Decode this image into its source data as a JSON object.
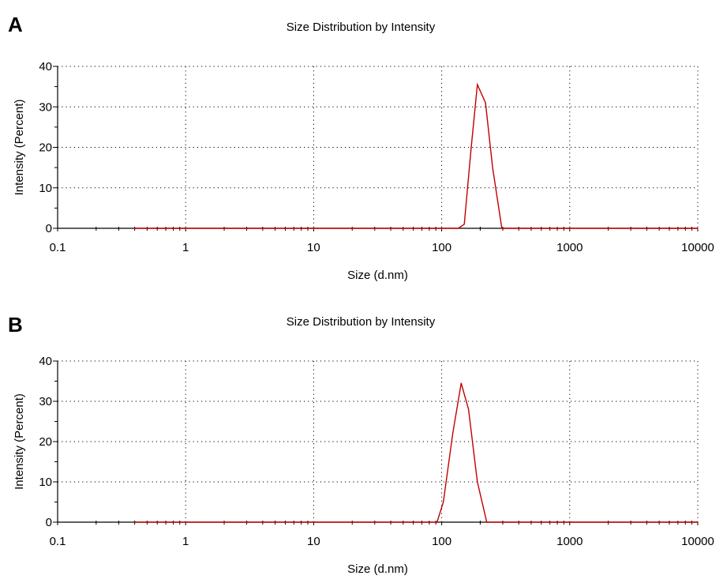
{
  "panels": [
    {
      "letter": "A",
      "chart_data": {
        "type": "line",
        "title": "Size Distribution by Intensity",
        "xlabel": "Size (d.nm)",
        "ylabel": "Intensity (Percent)",
        "x_scale": "log",
        "xlim": [
          0.1,
          10000
        ],
        "ylim": [
          0,
          40
        ],
        "x_ticks": [
          "0.1",
          "1",
          "10",
          "100",
          "1000",
          "10000"
        ],
        "y_ticks": [
          "0",
          "10",
          "20",
          "30",
          "40"
        ],
        "grid": "dotted",
        "series": [
          {
            "color": "#c00000",
            "x": [
              0.4,
              135,
              150,
              170,
              190,
              220,
              250,
              295,
              10000
            ],
            "y": [
              0,
              0,
              1,
              20,
              35.5,
              31,
              15,
              0,
              0
            ]
          }
        ]
      }
    },
    {
      "letter": "B",
      "chart_data": {
        "type": "line",
        "title": "Size Distribution by Intensity",
        "xlabel": "Size (d.nm)",
        "ylabel": "Intensity (Percent)",
        "x_scale": "log",
        "xlim": [
          0.1,
          10000
        ],
        "ylim": [
          0,
          40
        ],
        "x_ticks": [
          "0.1",
          "1",
          "10",
          "100",
          "1000",
          "10000"
        ],
        "y_ticks": [
          "0",
          "10",
          "20",
          "30",
          "40"
        ],
        "grid": "dotted",
        "series": [
          {
            "color": "#c00000",
            "x": [
              0.4,
              92,
              103,
              122,
              142,
              162,
              190,
              225,
              10000
            ],
            "y": [
              0,
              0,
              5,
              22,
              34.5,
              28,
              10,
              0,
              0
            ]
          }
        ]
      }
    }
  ]
}
